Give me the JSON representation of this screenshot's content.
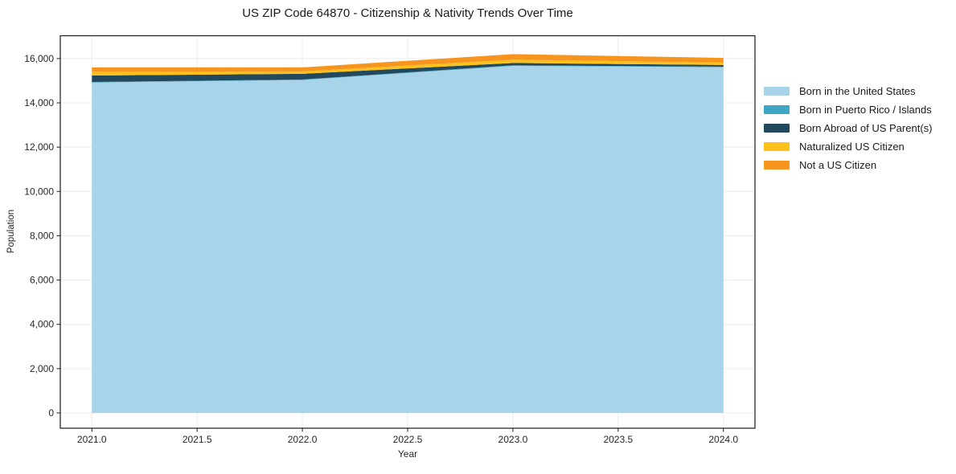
{
  "chart_data": {
    "type": "area",
    "stacked": true,
    "title": "US ZIP Code 64870 - Citizenship & Nativity Trends Over Time",
    "xlabel": "Year",
    "ylabel": "Population",
    "x": [
      2021,
      2022,
      2023,
      2024
    ],
    "series": [
      {
        "name": "Born in the United States",
        "color": "#a9d3e8",
        "values": [
          14920,
          15030,
          15670,
          15610
        ]
      },
      {
        "name": "Born in Puerto Rico / Islands",
        "color": "#3ea6c4",
        "values": [
          25,
          25,
          25,
          25
        ]
      },
      {
        "name": "Born Abroad of US Parent(s)",
        "color": "#21485c",
        "values": [
          290,
          255,
          105,
          75
        ]
      },
      {
        "name": "Naturalized US Citizen",
        "color": "#fcc21b",
        "values": [
          180,
          110,
          150,
          110
        ]
      },
      {
        "name": "Not a US Citizen",
        "color": "#f7941e",
        "values": [
          185,
          180,
          250,
          210
        ]
      }
    ],
    "stack_totals": [
      15600,
      15600,
      16200,
      16030
    ],
    "x_ticks": {
      "values": [
        2021.0,
        2021.5,
        2022.0,
        2022.5,
        2023.0,
        2023.5,
        2024.0
      ],
      "labels": [
        "2021.0",
        "2021.5",
        "2022.0",
        "2022.5",
        "2023.0",
        "2023.5",
        "2024.0"
      ]
    },
    "y_ticks": {
      "values": [
        0,
        2000,
        4000,
        6000,
        8000,
        10000,
        12000,
        14000,
        16000
      ],
      "labels": [
        "0",
        "2,000",
        "4,000",
        "6,000",
        "8,000",
        "10,000",
        "12,000",
        "14,000",
        "16,000"
      ]
    },
    "xlim": [
      2020.85,
      2024.15
    ],
    "ylim": [
      -690,
      17030
    ],
    "grid": true,
    "grid_color": "#ececec",
    "spine_color": "#1a1a1a",
    "tick_label_color": "#262626",
    "legend_position": "right",
    "legend_frame": false
  }
}
